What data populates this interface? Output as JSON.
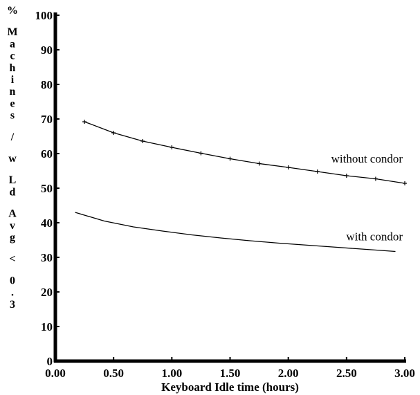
{
  "chart_data": {
    "type": "line",
    "title": "",
    "xlabel": "Keyboard Idle time (hours)",
    "ylabel": "% Machines / w Ld Avg < 0.3",
    "xlim": [
      0.0,
      3.0
    ],
    "ylim": [
      0,
      100
    ],
    "x_ticks": [
      "0.00",
      "0.50",
      "1.00",
      "1.50",
      "2.00",
      "2.50",
      "3.00"
    ],
    "y_ticks": [
      "0",
      "10",
      "20",
      "30",
      "40",
      "50",
      "60",
      "70",
      "80",
      "90",
      "100"
    ],
    "grid": false,
    "legend": "inline labels",
    "series": [
      {
        "name": "without condor",
        "markers": true,
        "x": [
          0.25,
          0.5,
          0.75,
          1.0,
          1.25,
          1.5,
          1.75,
          2.0,
          2.25,
          2.5,
          2.75,
          3.0
        ],
        "y": [
          69.2,
          66.0,
          63.6,
          61.8,
          60.1,
          58.5,
          57.1,
          56.0,
          54.8,
          53.6,
          52.7,
          51.4
        ]
      },
      {
        "name": "with condor",
        "markers": false,
        "x": [
          0.17,
          0.42,
          0.67,
          0.92,
          1.17,
          1.42,
          1.67,
          1.92,
          2.17,
          2.42,
          2.67,
          2.92
        ],
        "y": [
          43.0,
          40.5,
          38.8,
          37.6,
          36.5,
          35.6,
          34.8,
          34.1,
          33.5,
          32.9,
          32.3,
          31.7
        ]
      }
    ]
  }
}
